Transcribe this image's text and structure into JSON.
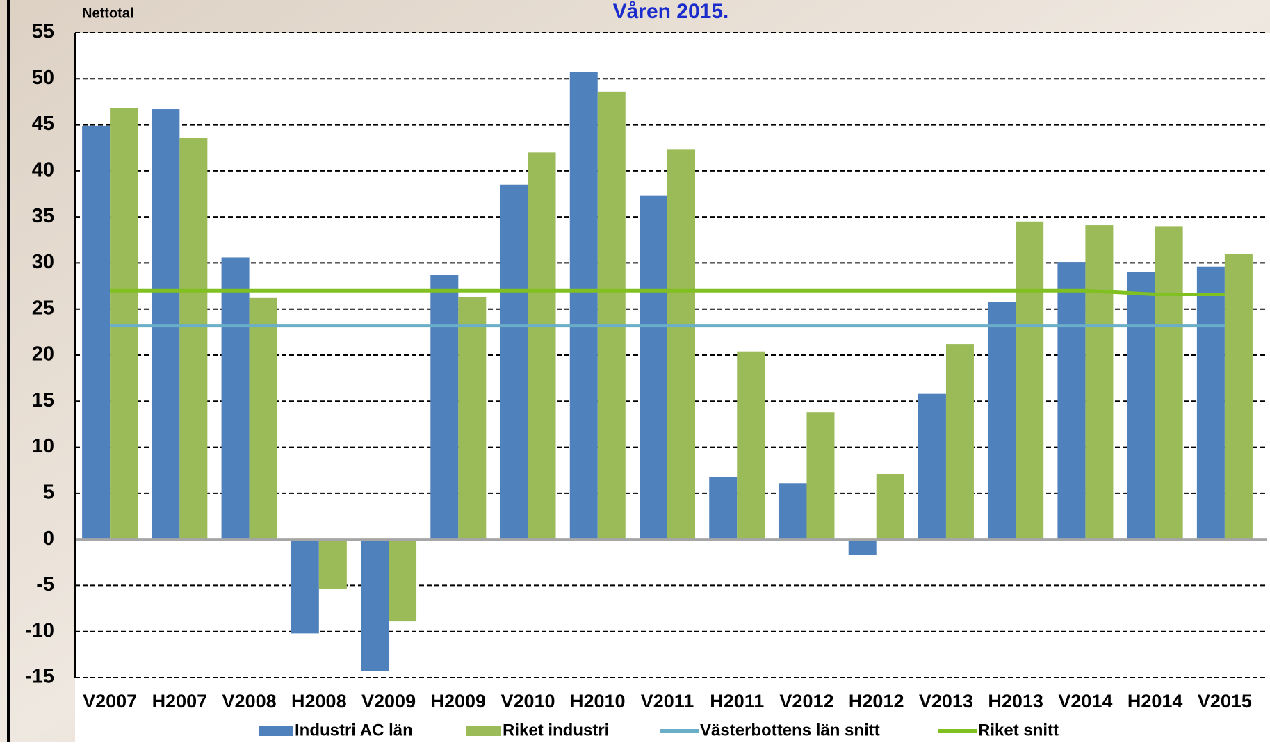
{
  "chart_data": {
    "type": "bar",
    "title": "Våren 2015.",
    "y_label": "Nettotal",
    "categories": [
      "V2007",
      "H2007",
      "V2008",
      "H2008",
      "V2009",
      "H2009",
      "V2010",
      "H2010",
      "V2011",
      "H2011",
      "V2012",
      "H2012",
      "V2013",
      "H2013",
      "V2014",
      "H2014",
      "V2015"
    ],
    "series": [
      {
        "name": "Industri AC län",
        "color": "#4f81bd",
        "type": "bar",
        "values": [
          44.9,
          46.7,
          30.6,
          -10.2,
          -14.3,
          28.7,
          38.5,
          50.7,
          37.3,
          6.8,
          6.1,
          -1.7,
          15.8,
          25.8,
          30.1,
          29.0,
          29.6
        ]
      },
      {
        "name": "Riket industri",
        "color": "#9bbb59",
        "type": "bar",
        "values": [
          46.8,
          43.6,
          26.2,
          -5.4,
          -8.9,
          26.3,
          42.0,
          48.6,
          42.3,
          20.4,
          13.8,
          7.1,
          21.2,
          34.5,
          34.1,
          34.0,
          31.0
        ]
      },
      {
        "name": "Västerbottens  län snitt",
        "color": "#6aaec8",
        "type": "line",
        "values": [
          23.2,
          23.2,
          23.2,
          23.2,
          23.2,
          23.2,
          23.2,
          23.2,
          23.2,
          23.2,
          23.2,
          23.2,
          23.2,
          23.2,
          23.2,
          23.2,
          23.2
        ]
      },
      {
        "name": "Riket snitt",
        "color": "#80c020",
        "type": "line",
        "values": [
          27.0,
          27.0,
          27.0,
          27.0,
          27.0,
          27.0,
          27.0,
          27.0,
          27.0,
          27.0,
          27.0,
          27.0,
          27.0,
          27.0,
          27.0,
          26.6,
          26.6
        ]
      }
    ],
    "ylim": [
      -15,
      55
    ],
    "yticks": [
      -15,
      -10,
      -5,
      0,
      5,
      10,
      15,
      20,
      25,
      30,
      35,
      40,
      45,
      50,
      55
    ],
    "grid": true
  }
}
